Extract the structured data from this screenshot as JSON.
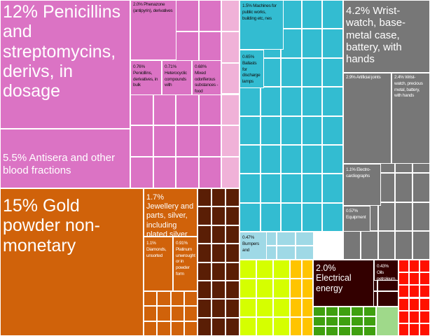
{
  "colors": {
    "pink": "#db73c4",
    "light_pink": "#f0b2d8",
    "cyan": "#33bcd1",
    "light_blue": "#9fd9e6",
    "gray": "#777777",
    "orange": "#d0620a",
    "brown": "#5a1e05",
    "yellow_green": "#d5ff00",
    "amber": "#ffc400",
    "maroon": "#330000",
    "green": "#3fa00f",
    "light_green": "#9fd98a",
    "red": "#ff1100"
  },
  "tiles": {
    "penicillins": "12% Penicillins and streptomycins, derivs, in dosage",
    "antisera": "5.5% Antisera and other blood fractions",
    "phenazone": "2.0% Phenazone (antipyrin), derivatives",
    "penicillins_bulk": "0.76% Penicillins, derivatives, in bulk",
    "heterocyclic": "0.71% Heterocyclic compounds with",
    "odoriferous": "0.68% Mixed odoriferous substances - food",
    "machines": "1.5% Machines for public works, building etc, nes",
    "ballasts": "0.65% Ballasts for discharge lamps",
    "wristwatch_base": "4.2% Wrist-watch, base-metal case, battery, with hands",
    "artificial_joints": "2.9% Artificial joints",
    "wristwatch_precious": "2.4% Wrist-watch, precious metal, battery, with hands",
    "electrocardiographs": "1.1% Electro-cardiographs",
    "equipment": "0.57% Equipment",
    "gold": "15% Gold powder non-monetary",
    "jewellery": "1.7% Jewellery and parts, silver, including plated silver",
    "diamonds": "1.1% Diamonds, unsorted",
    "platinum": "0.91% Platinum unwrought or in powder form",
    "bumpers": "0.47% Bumpers and",
    "electrical_energy": "2.0% Electrical energy",
    "oils": "0.43% Oils petroleum, bituminous,"
  }
}
